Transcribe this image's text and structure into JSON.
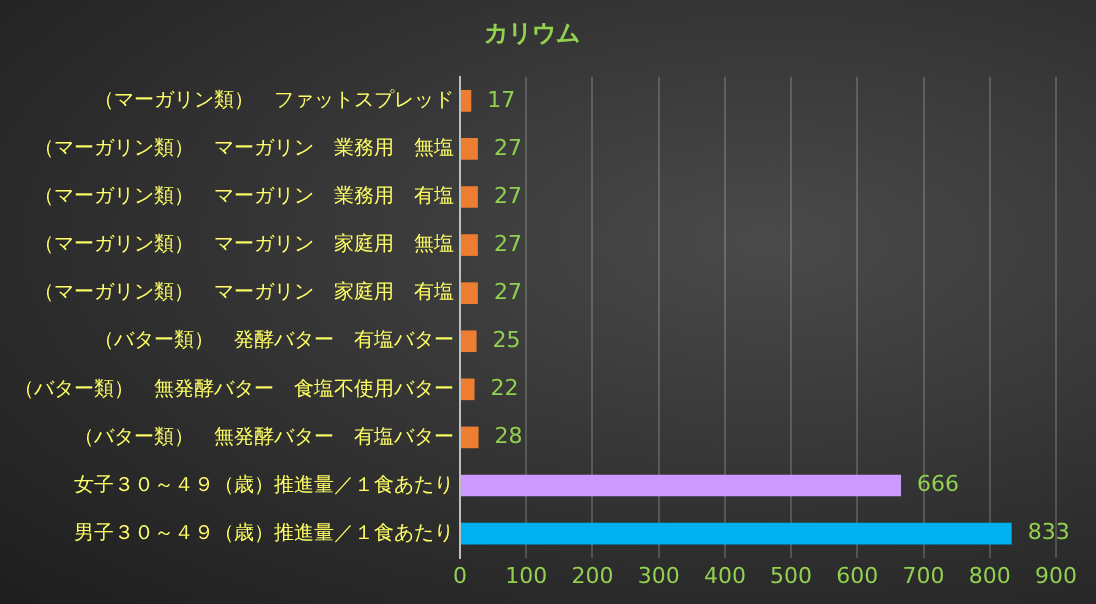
{
  "chart_data": {
    "type": "bar",
    "orientation": "horizontal",
    "title": "カリウム",
    "categories": [
      "（マーガリン類）　ファットスプレッド",
      "（マーガリン類）　マーガリン　業務用　無塩",
      "（マーガリン類）　マーガリン　業務用　有塩",
      "（マーガリン類）　マーガリン　家庭用　無塩",
      "（マーガリン類）　マーガリン　家庭用　有塩",
      "（バター類）　発酵バター　有塩バター",
      "（バター類）　無発酵バター　食塩不使用バター",
      "（バター類）　無発酵バター　有塩バター",
      "女子３０～４９（歳）推進量／１食あたり",
      "男子３０～４９（歳）推進量／１食あたり"
    ],
    "values": [
      17,
      27,
      27,
      27,
      27,
      25,
      22,
      28,
      666,
      833
    ],
    "colors": [
      "#ed7d31",
      "#ed7d31",
      "#ed7d31",
      "#ed7d31",
      "#ed7d31",
      "#ed7d31",
      "#ed7d31",
      "#ed7d31",
      "#cc99ff",
      "#00b0f0"
    ],
    "xlim": [
      0,
      900
    ],
    "xticks": [
      0,
      100,
      200,
      300,
      400,
      500,
      600,
      700,
      800,
      900
    ],
    "grid": "x",
    "data_labels": true,
    "legend": false
  }
}
